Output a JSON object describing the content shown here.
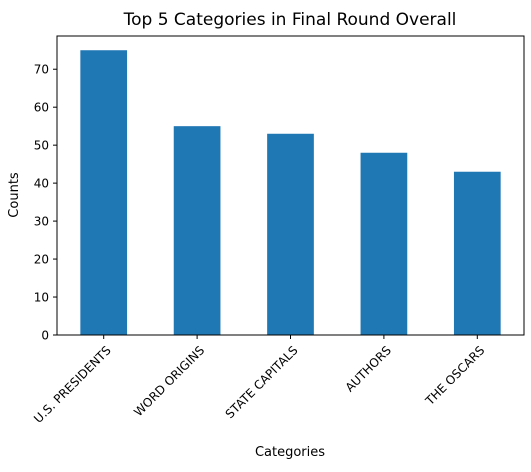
{
  "chart_data": {
    "type": "bar",
    "title": "Top 5 Categories in Final Round Overall",
    "xlabel": "Categories",
    "ylabel": "Counts",
    "categories": [
      "U.S. PRESIDENTS",
      "WORD ORIGINS",
      "STATE CAPITALS",
      "AUTHORS",
      "THE OSCARS"
    ],
    "values": [
      75,
      55,
      53,
      48,
      43
    ],
    "ylim": [
      0,
      78.75
    ],
    "yticks": [
      0,
      10,
      20,
      30,
      40,
      50,
      60,
      70
    ],
    "bar_color": "#1f77b4",
    "grid": false,
    "legend": "none"
  }
}
